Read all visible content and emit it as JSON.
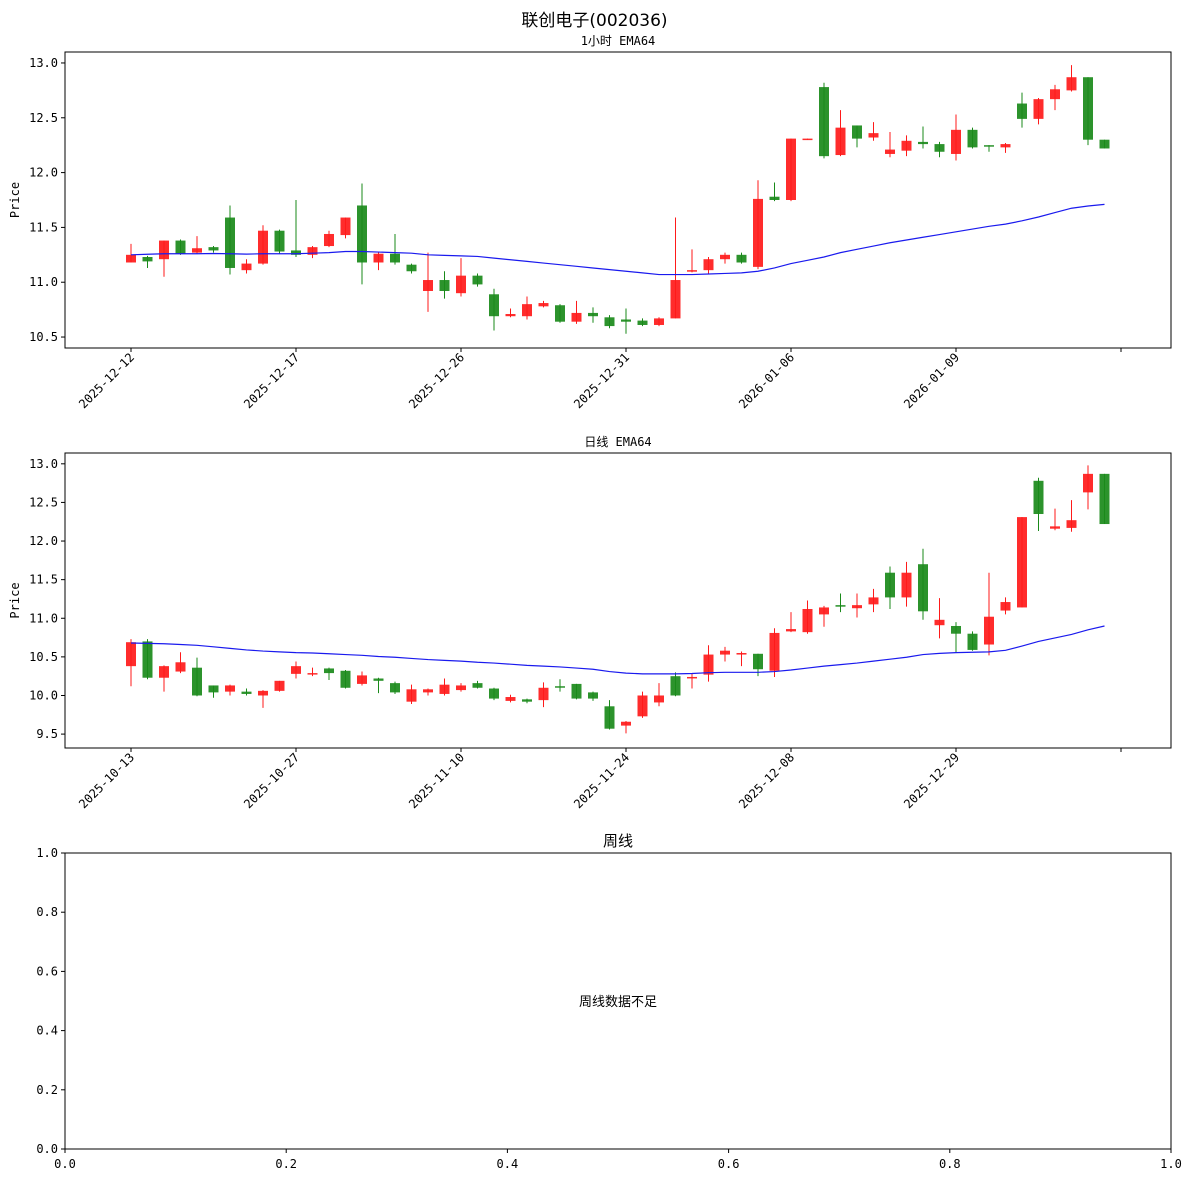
{
  "suptitle": "联创电子(002036)",
  "colors": {
    "up": "#ff1a1a",
    "down": "#1a8a1a",
    "ema": "#1a1aee"
  },
  "chart_data": [
    {
      "type": "candlestick",
      "title": "1小时 EMA64",
      "ylabel": "Price",
      "ylim": [
        10.4,
        13.1
      ],
      "yticks": [
        "10.5",
        "11.0",
        "11.5",
        "12.0",
        "12.5",
        "13.0"
      ],
      "xtick_labels": [
        "2025-12-12",
        "2025-12-17",
        "2025-12-26",
        "2025-12-31",
        "2026-01-06",
        "2026-01-09",
        ""
      ],
      "xtick_index": [
        0,
        10,
        20,
        30,
        40,
        50,
        60
      ],
      "candles": [
        [
          11.18,
          11.25,
          11.35,
          11.18
        ],
        [
          11.23,
          11.19,
          11.24,
          11.13
        ],
        [
          11.21,
          11.38,
          11.38,
          11.05
        ],
        [
          11.38,
          11.26,
          11.39,
          11.25
        ],
        [
          11.27,
          11.31,
          11.42,
          11.26
        ],
        [
          11.32,
          11.29,
          11.33,
          11.27
        ],
        [
          11.59,
          11.13,
          11.7,
          11.07
        ],
        [
          11.11,
          11.17,
          11.21,
          11.08
        ],
        [
          11.17,
          11.47,
          11.52,
          11.16
        ],
        [
          11.47,
          11.28,
          11.48,
          11.26
        ],
        [
          11.29,
          11.25,
          11.75,
          11.23
        ],
        [
          11.25,
          11.32,
          11.33,
          11.22
        ],
        [
          11.33,
          11.44,
          11.47,
          11.32
        ],
        [
          11.43,
          11.59,
          11.59,
          11.4
        ],
        [
          11.7,
          11.18,
          11.9,
          10.98
        ],
        [
          11.18,
          11.26,
          11.28,
          11.11
        ],
        [
          11.26,
          11.18,
          11.44,
          11.16
        ],
        [
          11.16,
          11.1,
          11.17,
          11.08
        ],
        [
          10.92,
          11.02,
          11.27,
          10.73
        ],
        [
          11.02,
          10.92,
          11.1,
          10.85
        ],
        [
          10.9,
          11.06,
          11.22,
          10.87
        ],
        [
          11.06,
          10.98,
          11.08,
          10.96
        ],
        [
          10.89,
          10.69,
          10.94,
          10.56
        ],
        [
          10.69,
          10.71,
          10.76,
          10.68
        ],
        [
          10.69,
          10.8,
          10.87,
          10.66
        ],
        [
          10.78,
          10.81,
          10.83,
          10.77
        ],
        [
          10.79,
          10.64,
          10.8,
          10.63
        ],
        [
          10.64,
          10.72,
          10.83,
          10.62
        ],
        [
          10.72,
          10.69,
          10.77,
          10.63
        ],
        [
          10.68,
          10.6,
          10.7,
          10.58
        ],
        [
          10.66,
          10.64,
          10.76,
          10.53
        ],
        [
          10.65,
          10.61,
          10.67,
          10.6
        ],
        [
          10.61,
          10.67,
          10.68,
          10.6
        ],
        [
          10.67,
          11.02,
          11.59,
          10.67
        ],
        [
          11.1,
          11.11,
          11.3,
          11.09
        ],
        [
          11.11,
          11.21,
          11.23,
          11.08
        ],
        [
          11.21,
          11.25,
          11.27,
          11.17
        ],
        [
          11.25,
          11.18,
          11.27,
          11.17
        ],
        [
          11.14,
          11.76,
          11.93,
          11.12
        ],
        [
          11.78,
          11.75,
          11.91,
          11.74
        ],
        [
          11.75,
          12.31,
          12.31,
          11.74
        ],
        [
          12.31,
          12.31,
          12.31,
          12.3
        ],
        [
          12.78,
          12.15,
          12.82,
          12.13
        ],
        [
          12.16,
          12.41,
          12.57,
          12.15
        ],
        [
          12.43,
          12.31,
          12.43,
          12.23
        ],
        [
          12.32,
          12.36,
          12.46,
          12.29
        ],
        [
          12.17,
          12.21,
          12.37,
          12.14
        ],
        [
          12.2,
          12.29,
          12.34,
          12.15
        ],
        [
          12.28,
          12.26,
          12.42,
          12.22
        ],
        [
          12.26,
          12.19,
          12.28,
          12.14
        ],
        [
          12.17,
          12.39,
          12.53,
          12.11
        ],
        [
          12.39,
          12.23,
          12.41,
          12.22
        ],
        [
          12.25,
          12.24,
          12.25,
          12.19
        ],
        [
          12.23,
          12.26,
          12.27,
          12.18
        ],
        [
          12.63,
          12.49,
          12.73,
          12.41
        ],
        [
          12.49,
          12.67,
          12.68,
          12.44
        ],
        [
          12.67,
          12.76,
          12.8,
          12.57
        ],
        [
          12.75,
          12.87,
          12.98,
          12.74
        ],
        [
          12.87,
          12.3,
          12.87,
          12.25
        ],
        [
          12.3,
          12.22,
          12.3,
          12.22
        ]
      ],
      "ema": [
        11.25,
        11.255,
        11.26,
        11.26,
        11.26,
        11.262,
        11.26,
        11.256,
        11.26,
        11.26,
        11.26,
        11.265,
        11.27,
        11.28,
        11.28,
        11.275,
        11.27,
        11.265,
        11.25,
        11.245,
        11.24,
        11.235,
        11.22,
        11.205,
        11.19,
        11.175,
        11.16,
        11.145,
        11.13,
        11.115,
        11.1,
        11.085,
        11.07,
        11.07,
        11.07,
        11.075,
        11.08,
        11.085,
        11.1,
        11.13,
        11.17,
        11.2,
        11.23,
        11.27,
        11.3,
        11.33,
        11.36,
        11.385,
        11.41,
        11.435,
        11.46,
        11.485,
        11.51,
        11.53,
        11.56,
        11.595,
        11.635,
        11.675,
        11.695,
        11.71
      ]
    },
    {
      "type": "candlestick",
      "title": "日线 EMA64",
      "ylabel": "Price",
      "ylim": [
        9.32,
        13.14
      ],
      "yticks": [
        "9.5",
        "10.0",
        "10.5",
        "11.0",
        "11.5",
        "12.0",
        "12.5",
        "13.0"
      ],
      "xtick_labels": [
        "2025-10-13",
        "2025-10-27",
        "2025-11-10",
        "2025-11-24",
        "2025-12-08",
        "2025-12-29",
        ""
      ],
      "xtick_index": [
        0,
        10,
        20,
        30,
        40,
        50,
        60
      ],
      "candles": [
        [
          10.38,
          10.69,
          10.73,
          10.12
        ],
        [
          10.7,
          10.23,
          10.73,
          10.21
        ],
        [
          10.23,
          10.38,
          10.39,
          10.05
        ],
        [
          10.31,
          10.43,
          10.56,
          10.29
        ],
        [
          10.36,
          10.0,
          10.49,
          9.99
        ],
        [
          10.13,
          10.04,
          10.13,
          9.97
        ],
        [
          10.05,
          10.13,
          10.14,
          10.0
        ],
        [
          10.05,
          10.02,
          10.09,
          10.0
        ],
        [
          10.0,
          10.06,
          10.07,
          9.84
        ],
        [
          10.06,
          10.19,
          10.19,
          10.05
        ],
        [
          10.28,
          10.38,
          10.44,
          10.22
        ],
        [
          10.28,
          10.29,
          10.36,
          10.25
        ],
        [
          10.35,
          10.29,
          10.36,
          10.2
        ],
        [
          10.32,
          10.1,
          10.33,
          10.09
        ],
        [
          10.15,
          10.26,
          10.31,
          10.13
        ],
        [
          10.22,
          10.19,
          10.23,
          10.03
        ],
        [
          10.16,
          10.04,
          10.18,
          10.02
        ],
        [
          9.92,
          10.08,
          10.14,
          9.89
        ],
        [
          10.04,
          10.08,
          10.09,
          10.0
        ],
        [
          10.02,
          10.14,
          10.22,
          10.0
        ],
        [
          10.07,
          10.13,
          10.16,
          10.05
        ],
        [
          10.16,
          10.1,
          10.19,
          10.09
        ],
        [
          10.09,
          9.96,
          10.1,
          9.94
        ],
        [
          9.93,
          9.98,
          10.01,
          9.91
        ],
        [
          9.95,
          9.92,
          9.96,
          9.9
        ],
        [
          9.94,
          10.1,
          10.17,
          9.85
        ],
        [
          10.12,
          10.11,
          10.21,
          10.05
        ],
        [
          10.15,
          9.96,
          10.15,
          9.95
        ],
        [
          10.04,
          9.96,
          10.05,
          9.93
        ],
        [
          9.86,
          9.57,
          9.94,
          9.56
        ],
        [
          9.61,
          9.66,
          9.67,
          9.51
        ],
        [
          9.73,
          10.0,
          10.05,
          9.71
        ],
        [
          9.91,
          10.0,
          10.16,
          9.86
        ],
        [
          10.25,
          10.0,
          10.3,
          9.99
        ],
        [
          10.24,
          10.24,
          10.29,
          10.09
        ],
        [
          10.27,
          10.53,
          10.65,
          10.18
        ],
        [
          10.53,
          10.58,
          10.63,
          10.44
        ],
        [
          10.53,
          10.55,
          10.57,
          10.38
        ],
        [
          10.54,
          10.34,
          10.54,
          10.25
        ],
        [
          10.32,
          10.81,
          10.87,
          10.24
        ],
        [
          10.83,
          10.86,
          11.08,
          10.82
        ],
        [
          10.82,
          11.12,
          11.23,
          10.8
        ],
        [
          11.05,
          11.14,
          11.16,
          10.89
        ],
        [
          11.17,
          11.15,
          11.32,
          11.08
        ],
        [
          11.13,
          11.17,
          11.32,
          11.01
        ],
        [
          11.18,
          11.27,
          11.38,
          11.08
        ],
        [
          11.59,
          11.27,
          11.67,
          11.12
        ],
        [
          11.27,
          11.59,
          11.73,
          11.15
        ],
        [
          11.7,
          11.09,
          11.9,
          10.98
        ],
        [
          10.91,
          10.98,
          11.26,
          10.74
        ],
        [
          10.9,
          10.8,
          10.95,
          10.55
        ],
        [
          10.8,
          10.59,
          10.83,
          10.58
        ],
        [
          10.66,
          11.02,
          11.59,
          10.52
        ],
        [
          11.1,
          11.21,
          11.27,
          11.05
        ],
        [
          11.14,
          12.31,
          12.31,
          11.14
        ],
        [
          12.78,
          12.35,
          12.82,
          12.13
        ],
        [
          12.16,
          12.19,
          12.42,
          12.14
        ],
        [
          12.17,
          12.27,
          12.53,
          12.12
        ],
        [
          12.63,
          12.87,
          12.98,
          12.41
        ],
        [
          12.87,
          12.22,
          12.87,
          12.22
        ]
      ],
      "ema": [
        10.68,
        10.675,
        10.67,
        10.66,
        10.65,
        10.63,
        10.61,
        10.59,
        10.575,
        10.565,
        10.555,
        10.55,
        10.54,
        10.53,
        10.52,
        10.505,
        10.495,
        10.48,
        10.465,
        10.455,
        10.445,
        10.43,
        10.42,
        10.405,
        10.39,
        10.38,
        10.37,
        10.355,
        10.34,
        10.31,
        10.29,
        10.28,
        10.28,
        10.28,
        10.285,
        10.295,
        10.3,
        10.3,
        10.3,
        10.31,
        10.33,
        10.355,
        10.38,
        10.4,
        10.42,
        10.445,
        10.47,
        10.495,
        10.53,
        10.545,
        10.555,
        10.56,
        10.565,
        10.585,
        10.64,
        10.7,
        10.745,
        10.79,
        10.85,
        10.9
      ]
    },
    {
      "type": "empty",
      "title": "周线",
      "message": "周线数据不足",
      "xticks": [
        "0.0",
        "0.2",
        "0.4",
        "0.6",
        "0.8",
        "1.0"
      ],
      "yticks": [
        "0.0",
        "0.2",
        "0.4",
        "0.6",
        "0.8",
        "1.0"
      ]
    }
  ]
}
